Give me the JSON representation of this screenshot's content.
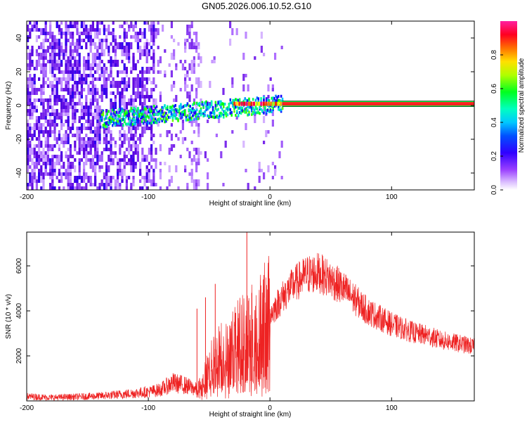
{
  "figure": {
    "title": "GN05.2026.006.10.52.G10"
  },
  "chart_data": [
    {
      "type": "heatmap",
      "xlabel": "Height of straight line (km)",
      "ylabel": "Frequency (Hz)",
      "xlim": [
        -200,
        168
      ],
      "ylim": [
        -50,
        50
      ],
      "xticks": [
        -200,
        -100,
        0,
        100
      ],
      "yticks": [
        -40,
        -20,
        0,
        20,
        40
      ],
      "colorbar": {
        "label": "Normalized spectral amplitude",
        "range": [
          0,
          1
        ],
        "ticks": [
          "0.0",
          "0.2",
          "0.4",
          "0.6",
          "0.8"
        ],
        "colormap": [
          "#ffffff",
          "#b070ff",
          "#5a00e0",
          "#0000ff",
          "#00c0ff",
          "#00ffb0",
          "#00ff00",
          "#c0ff00",
          "#ffff00",
          "#ff8000",
          "#ff0000",
          "#ff0080",
          "#ff00a0"
        ]
      },
      "features": {
        "signal_line_frequency_hz": 1,
        "signal_line_start_km": 10,
        "noise_region_km": [
          -200,
          -55
        ],
        "transition_region_km": [
          -140,
          10
        ]
      },
      "grid": false
    },
    {
      "type": "line",
      "xlabel": "Height of straight line (km)",
      "ylabel": "SNR (10 * v/v)",
      "xlim": [
        -200,
        168
      ],
      "ylim": [
        0,
        7500
      ],
      "xticks": [
        -200,
        -100,
        0,
        100
      ],
      "yticks": [
        2000,
        4000,
        6000
      ],
      "line_color": "#ee2222",
      "series": [
        {
          "x": [
            -200,
            -180,
            -160,
            -140,
            -120,
            -100,
            -90,
            -80,
            -70,
            -60,
            -55,
            -50,
            -45,
            -40,
            -35,
            -30,
            -25,
            -20,
            -15,
            -10,
            -5,
            0,
            10,
            20,
            30,
            40,
            50,
            60,
            70,
            80,
            90,
            100,
            110,
            120,
            130,
            140,
            150,
            160,
            168
          ],
          "y": [
            200,
            150,
            180,
            220,
            300,
            400,
            500,
            800,
            700,
            500,
            800,
            1400,
            1800,
            2100,
            2000,
            2400,
            2700,
            3000,
            3000,
            3200,
            3500,
            3800,
            4600,
            5200,
            5600,
            5700,
            5400,
            5000,
            4500,
            4000,
            3700,
            3400,
            3200,
            3000,
            2900,
            2700,
            2600,
            2500,
            2400
          ],
          "spikes": [
            {
              "x": -60,
              "y": 4100
            },
            {
              "x": -53,
              "y": 4600
            },
            {
              "x": -45,
              "y": 5200
            },
            {
              "x": -19,
              "y": 7500
            },
            {
              "x": -15,
              "y": 4800
            },
            {
              "x": -5,
              "y": 5100
            }
          ]
        }
      ],
      "grid": false
    }
  ]
}
